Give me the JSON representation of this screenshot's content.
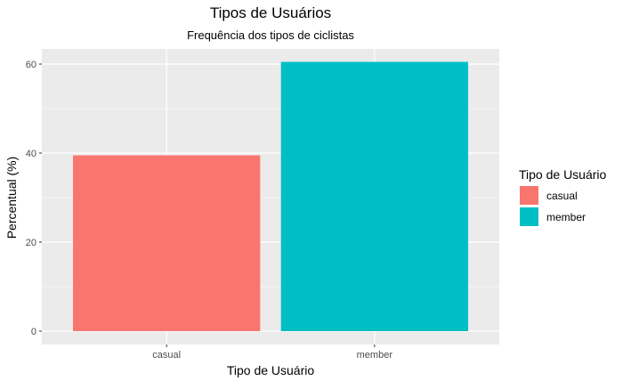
{
  "chart_data": {
    "type": "bar",
    "title": "Tipos de Usuários",
    "subtitle": "Frequência dos tipos de ciclistas",
    "xlabel": "Tipo de Usuário",
    "ylabel": "Percentual (%)",
    "categories": [
      "casual",
      "member"
    ],
    "values": [
      39.5,
      60.5
    ],
    "colors": [
      "#F8766D",
      "#00BFC4"
    ],
    "ylim": [
      0,
      63
    ],
    "yticks": [
      0,
      20,
      40,
      60
    ],
    "grid": true,
    "legend": {
      "title": "Tipo de Usuário",
      "position": "right",
      "items": [
        "casual",
        "member"
      ]
    },
    "background": "#EBEBEB"
  }
}
